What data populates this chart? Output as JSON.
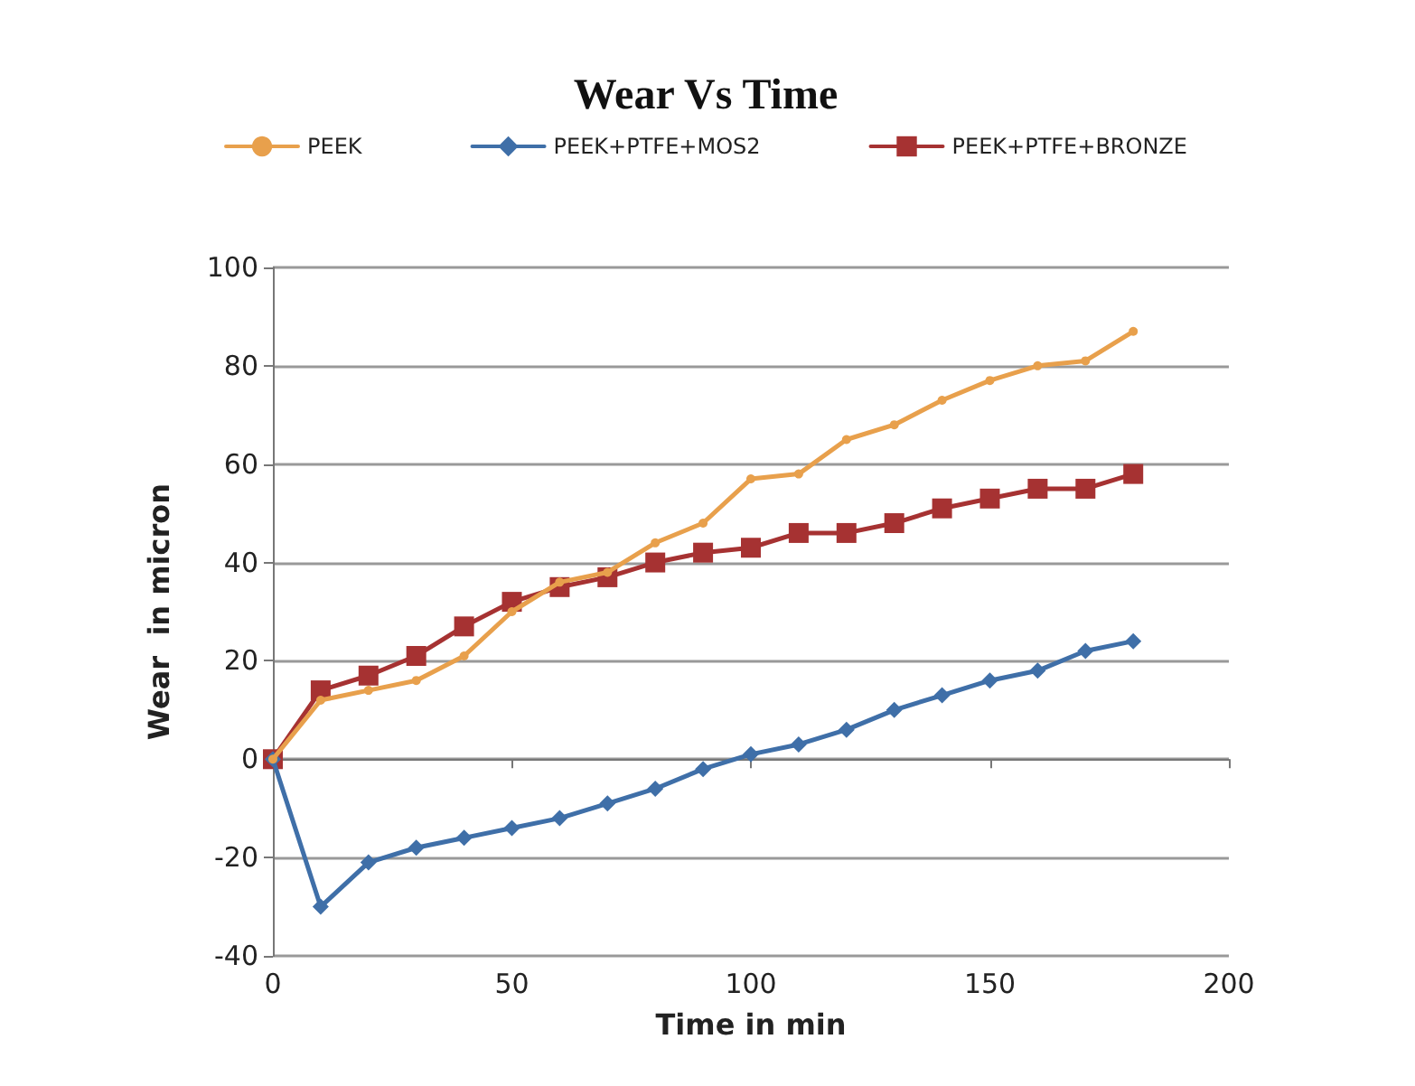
{
  "chart_data": {
    "type": "line",
    "title": "Wear Vs Time",
    "xlabel": "Time in min",
    "ylabel": "Wear  in micron",
    "x": [
      0,
      10,
      20,
      30,
      40,
      50,
      60,
      70,
      80,
      90,
      100,
      110,
      120,
      130,
      140,
      150,
      160,
      170,
      180
    ],
    "series": [
      {
        "name": "PEEK",
        "color": "#e8a04c",
        "marker": "circle",
        "values": [
          0,
          12,
          14,
          16,
          21,
          30,
          36,
          38,
          44,
          48,
          57,
          58,
          65,
          68,
          73,
          77,
          80,
          81,
          87
        ]
      },
      {
        "name": "PEEK+PTFE+MOS2",
        "color": "#3f6fa8",
        "marker": "diamond",
        "values": [
          0,
          -30,
          -21,
          -18,
          -16,
          -14,
          -12,
          -9,
          -6,
          -2,
          1,
          3,
          6,
          10,
          13,
          16,
          18,
          22,
          24
        ]
      },
      {
        "name": "PEEK+PTFE+BRONZE",
        "color": "#a63232",
        "marker": "square",
        "values": [
          0,
          14,
          17,
          21,
          27,
          32,
          35,
          37,
          40,
          42,
          43,
          46,
          46,
          48,
          51,
          53,
          55,
          55,
          58
        ]
      }
    ],
    "xlim": [
      0,
      200
    ],
    "xticks": [
      0,
      50,
      100,
      150,
      200
    ],
    "ylim": [
      -40,
      100
    ],
    "yticks": [
      -40,
      -20,
      0,
      20,
      40,
      60,
      80,
      100
    ],
    "grid": "y",
    "legend": "top"
  }
}
